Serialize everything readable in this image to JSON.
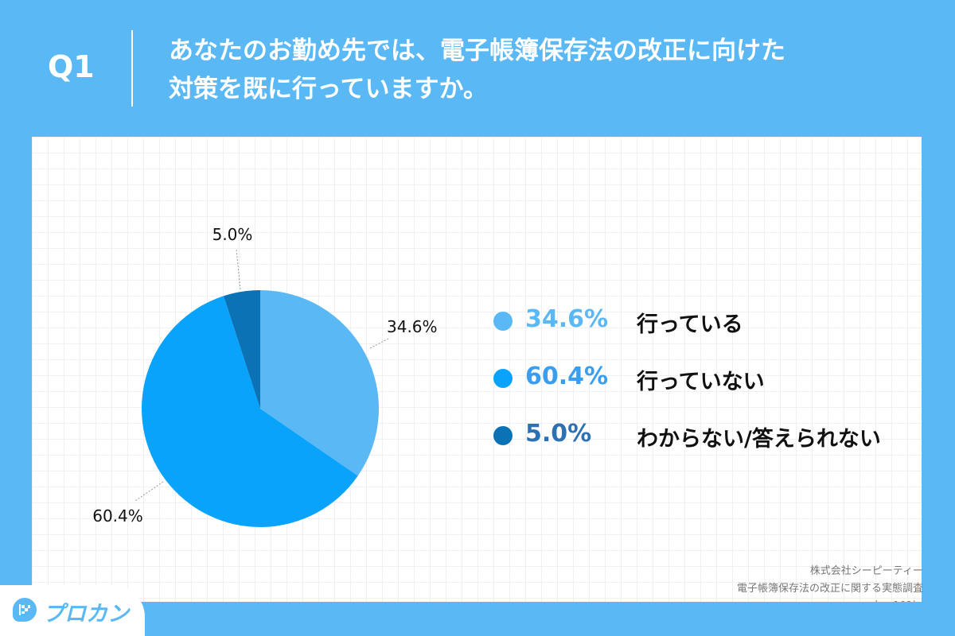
{
  "header": {
    "qnum": "Q1",
    "question_line1": "あなたのお勤め先では、電子帳簿保存法の改正に向けた",
    "question_line2": "対策を既に行っていますか。"
  },
  "chart_data": {
    "type": "pie",
    "slices": [
      {
        "label": "行っている",
        "value": 34.6,
        "display": "34.6%",
        "color": "#5ab9f5"
      },
      {
        "label": "行っていない",
        "value": 60.4,
        "display": "60.4%",
        "color": "#0aa3fc"
      },
      {
        "label": "わからない/答えられない",
        "value": 5.0,
        "display": "5.0%",
        "color": "#0b72b6"
      }
    ],
    "start": "12 o'clock, clockwise",
    "legend_placement": "right",
    "legend_label_colors": [
      "#5ab9f5",
      "#3a9ef0",
      "#2e71b3"
    ]
  },
  "source": {
    "line1": "株式会社シーピーティー",
    "line2": "電子帳簿保存法の改正に関する実態調査",
    "line3": "（n=101）"
  },
  "logo": {
    "text": "プロカン"
  },
  "colors": {
    "background": "#5ab9f5",
    "card": "#ffffff"
  }
}
